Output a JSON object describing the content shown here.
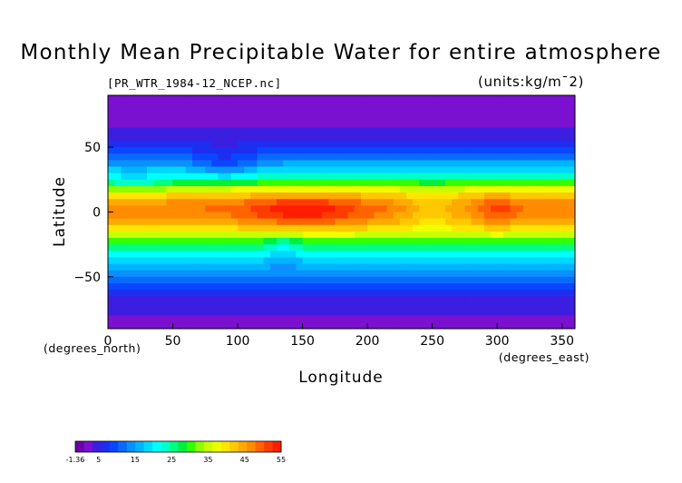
{
  "chart_data": {
    "type": "heatmap",
    "title": "Monthly Mean Precipitable Water for entire atmosphere",
    "subtitle_left": "[PR_WTR_1984-12_NCEP.nc]",
    "subtitle_right": "(units:kg/m¯2)",
    "xlabel": "Longitude",
    "ylabel": "Latitude",
    "x_unit": "(degrees_east)",
    "y_unit": "(degrees_north)",
    "xlim": [
      0,
      360
    ],
    "ylim": [
      -90,
      90
    ],
    "x_ticks": [
      0,
      50,
      100,
      150,
      200,
      250,
      300,
      350
    ],
    "y_ticks": [
      -50,
      0,
      50
    ],
    "zonal_mean_by_latitude": {
      "lat": [
        -90,
        -75,
        -65,
        -55,
        -45,
        -35,
        -25,
        -15,
        -5,
        5,
        15,
        25,
        35,
        45,
        55,
        65,
        75,
        90
      ],
      "value": [
        2,
        4,
        6,
        10,
        14,
        19,
        28,
        38,
        46,
        48,
        40,
        26,
        17,
        10,
        5,
        3,
        2,
        2
      ]
    },
    "colorbar": {
      "min": -1.36,
      "max": 55,
      "tick_labels": [
        "-1.36",
        "5",
        "15",
        "25",
        "35",
        "45",
        "55"
      ],
      "tick_values": [
        -1.36,
        5,
        15,
        25,
        35,
        45,
        55
      ],
      "colors": [
        "#6a00a8",
        "#7a10d0",
        "#3c1ee0",
        "#1e2ef0",
        "#0a46ff",
        "#0a6aff",
        "#0a90ff",
        "#00b4ff",
        "#00d8ff",
        "#00ffff",
        "#00ffc8",
        "#00ff82",
        "#00f03c",
        "#32ff00",
        "#8cff00",
        "#c8ff00",
        "#f0ff00",
        "#ffe600",
        "#ffc800",
        "#ffaa00",
        "#ff8c00",
        "#ff6400",
        "#ff3c00",
        "#ff1e00"
      ]
    },
    "grid": false
  }
}
